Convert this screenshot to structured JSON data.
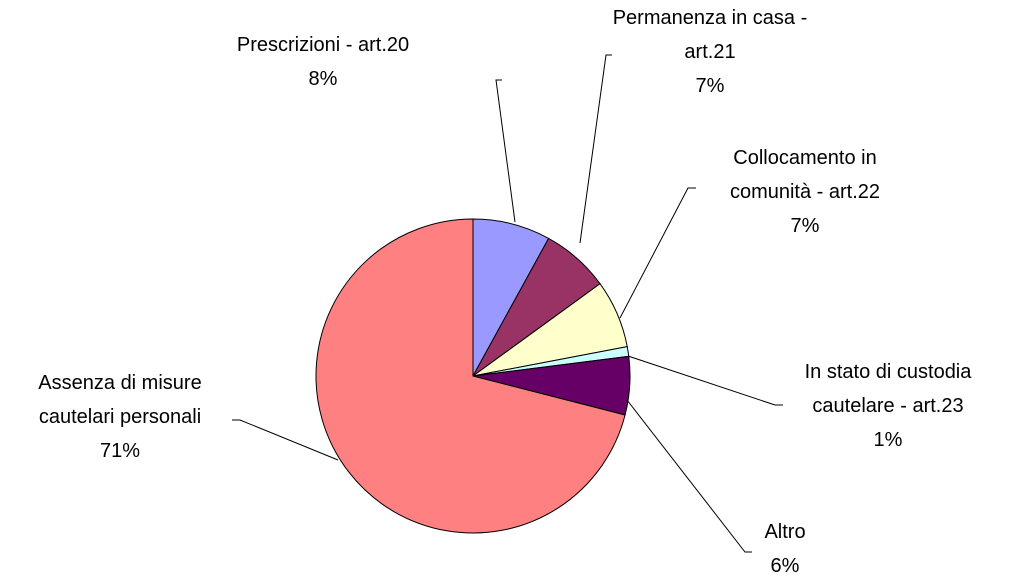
{
  "chart_data": {
    "type": "pie",
    "categories": [
      "Prescrizioni - art.20",
      "Permanenza in casa - art.21",
      "Collocamento in comunità - art.22",
      "In stato di custodia cautelare - art.23",
      "Altro",
      "Assenza di misure cautelari personali"
    ],
    "values": [
      8,
      7,
      7,
      1,
      6,
      71
    ],
    "value_labels": [
      "8%",
      "7%",
      "7%",
      "1%",
      "6%",
      "71%"
    ],
    "colors": [
      "#9999ff",
      "#993366",
      "#ffffcc",
      "#ccffff",
      "#660066",
      "#ff8080"
    ]
  }
}
